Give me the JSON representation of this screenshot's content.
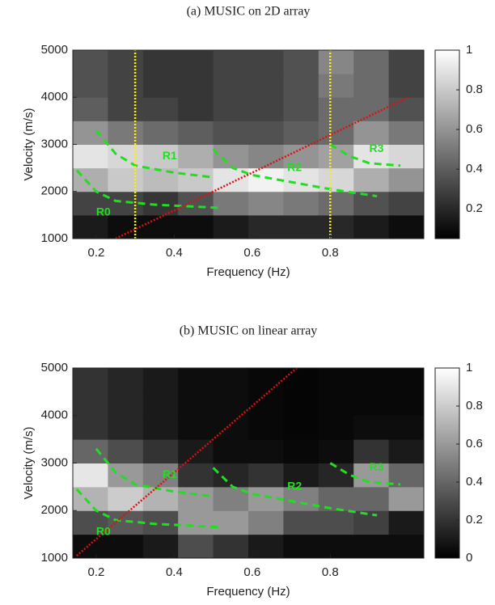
{
  "chart_data": [
    {
      "type": "heatmap",
      "title": "(a) MUSIC on 2D array",
      "xlabel": "Frequency (Hz)",
      "ylabel": "Velocity (m/s)",
      "xlim": [
        0.14,
        1.04
      ],
      "ylim": [
        1000,
        5000
      ],
      "xticks": [
        0.2,
        0.4,
        0.6,
        0.8
      ],
      "yticks": [
        1000,
        2000,
        3000,
        4000,
        5000
      ],
      "x_bins": [
        0.14,
        0.23,
        0.32,
        0.41,
        0.5,
        0.59,
        0.68,
        0.77,
        0.86,
        0.95,
        1.04
      ],
      "y_bins": [
        1000,
        1500,
        2000,
        2500,
        3000,
        3500,
        4000,
        4500,
        5000
      ],
      "z": [
        [
          0.15,
          0.3,
          0.7,
          0.9,
          0.6,
          0.4,
          0.35,
          0.35
        ],
        [
          0.1,
          0.3,
          0.8,
          0.85,
          0.5,
          0.3,
          0.3,
          0.3
        ],
        [
          0.1,
          0.25,
          0.75,
          0.8,
          0.45,
          0.3,
          0.25,
          0.25
        ],
        [
          0.1,
          0.35,
          0.8,
          0.7,
          0.4,
          0.25,
          0.25,
          0.25
        ],
        [
          0.15,
          0.5,
          0.9,
          0.6,
          0.35,
          0.3,
          0.3,
          0.3
        ],
        [
          0.2,
          0.55,
          0.95,
          0.55,
          0.35,
          0.3,
          0.3,
          0.3
        ],
        [
          0.2,
          0.5,
          0.9,
          0.6,
          0.4,
          0.35,
          0.35,
          0.35
        ],
        [
          0.2,
          0.45,
          0.85,
          0.65,
          0.45,
          0.45,
          0.5,
          0.55
        ],
        [
          0.15,
          0.35,
          0.7,
          0.9,
          0.6,
          0.45,
          0.45,
          0.45
        ],
        [
          0.1,
          0.3,
          0.6,
          0.85,
          0.5,
          0.35,
          0.3,
          0.3
        ]
      ],
      "clim": [
        0.05,
        1
      ],
      "cticks": [
        0.2,
        0.4,
        0.6,
        0.8,
        1
      ],
      "lines": [
        {
          "color": "#22dd22",
          "style": "dashed",
          "x": [
            0.15,
            0.2,
            0.25,
            0.35,
            0.45,
            0.52
          ],
          "y": [
            2450,
            2000,
            1800,
            1720,
            1680,
            1650
          ]
        },
        {
          "color": "#22dd22",
          "style": "dashed",
          "x": [
            0.2,
            0.25,
            0.3,
            0.4,
            0.5
          ],
          "y": [
            3300,
            2800,
            2550,
            2400,
            2300
          ]
        },
        {
          "color": "#22dd22",
          "style": "dashed",
          "x": [
            0.5,
            0.55,
            0.6,
            0.7,
            0.8,
            0.92
          ],
          "y": [
            2900,
            2500,
            2350,
            2200,
            2050,
            1900
          ]
        },
        {
          "color": "#22dd22",
          "style": "dashed",
          "x": [
            0.8,
            0.85,
            0.9,
            0.98
          ],
          "y": [
            3000,
            2750,
            2600,
            2550
          ]
        },
        {
          "color": "#dd1111",
          "style": "dotted",
          "x": [
            0.25,
            1.0
          ],
          "y": [
            1000,
            4000
          ]
        },
        {
          "color": "#ffee00",
          "style": "dotted",
          "x": [
            0.3,
            0.3
          ],
          "y": [
            1000,
            5000
          ]
        },
        {
          "color": "#ffee00",
          "style": "dotted",
          "x": [
            0.8,
            0.8
          ],
          "y": [
            1000,
            5000
          ]
        }
      ],
      "annotations": [
        "R0",
        "R1",
        "R2",
        "R3"
      ]
    },
    {
      "type": "heatmap",
      "title": "(b) MUSIC on linear array",
      "xlabel": "Frequency (Hz)",
      "ylabel": "Velocity (m/s)",
      "xlim": [
        0.14,
        1.04
      ],
      "ylim": [
        1000,
        5000
      ],
      "xticks": [
        0.2,
        0.4,
        0.6,
        0.8
      ],
      "yticks": [
        1000,
        2000,
        3000,
        4000,
        5000
      ],
      "x_bins": [
        0.14,
        0.23,
        0.32,
        0.41,
        0.5,
        0.59,
        0.68,
        0.77,
        0.86,
        0.95,
        1.04
      ],
      "y_bins": [
        1000,
        1500,
        2000,
        2500,
        3000,
        3500,
        4000,
        4500,
        5000
      ],
      "z": [
        [
          0.05,
          0.3,
          0.7,
          0.9,
          0.4,
          0.2,
          0.2,
          0.2
        ],
        [
          0.05,
          0.35,
          0.8,
          0.6,
          0.3,
          0.15,
          0.15,
          0.15
        ],
        [
          0.1,
          0.3,
          0.7,
          0.5,
          0.2,
          0.1,
          0.1,
          0.1
        ],
        [
          0.3,
          0.6,
          0.6,
          0.2,
          0.1,
          0.05,
          0.05,
          0.05
        ],
        [
          0.2,
          0.6,
          0.5,
          0.15,
          0.05,
          0.05,
          0.05,
          0.05
        ],
        [
          0.1,
          0.5,
          0.6,
          0.2,
          0.05,
          0.03,
          0.03,
          0.03
        ],
        [
          0.05,
          0.3,
          0.5,
          0.1,
          0.03,
          0.02,
          0.02,
          0.02
        ],
        [
          0.05,
          0.3,
          0.4,
          0.15,
          0.05,
          0.03,
          0.03,
          0.03
        ],
        [
          0.05,
          0.25,
          0.4,
          0.6,
          0.2,
          0.05,
          0.03,
          0.03
        ],
        [
          0.05,
          0.1,
          0.6,
          0.4,
          0.1,
          0.05,
          0.03,
          0.03
        ]
      ],
      "clim": [
        0,
        1
      ],
      "cticks": [
        0,
        0.2,
        0.4,
        0.6,
        0.8,
        1
      ],
      "lines": [
        {
          "color": "#22dd22",
          "style": "dashed",
          "x": [
            0.15,
            0.2,
            0.25,
            0.35,
            0.45,
            0.52
          ],
          "y": [
            2450,
            2000,
            1800,
            1720,
            1680,
            1650
          ]
        },
        {
          "color": "#22dd22",
          "style": "dashed",
          "x": [
            0.2,
            0.25,
            0.3,
            0.4,
            0.5
          ],
          "y": [
            3300,
            2800,
            2550,
            2400,
            2300
          ]
        },
        {
          "color": "#22dd22",
          "style": "dashed",
          "x": [
            0.5,
            0.55,
            0.6,
            0.7,
            0.8,
            0.92
          ],
          "y": [
            2900,
            2500,
            2350,
            2200,
            2050,
            1900
          ]
        },
        {
          "color": "#22dd22",
          "style": "dashed",
          "x": [
            0.8,
            0.85,
            0.9,
            0.98
          ],
          "y": [
            3000,
            2750,
            2600,
            2550
          ]
        },
        {
          "color": "#dd1111",
          "style": "dotted",
          "x": [
            0.15,
            0.714
          ],
          "y": [
            1050,
            5000
          ]
        }
      ],
      "annotations": [
        "R0",
        "R1",
        "R2",
        "R3"
      ]
    }
  ]
}
